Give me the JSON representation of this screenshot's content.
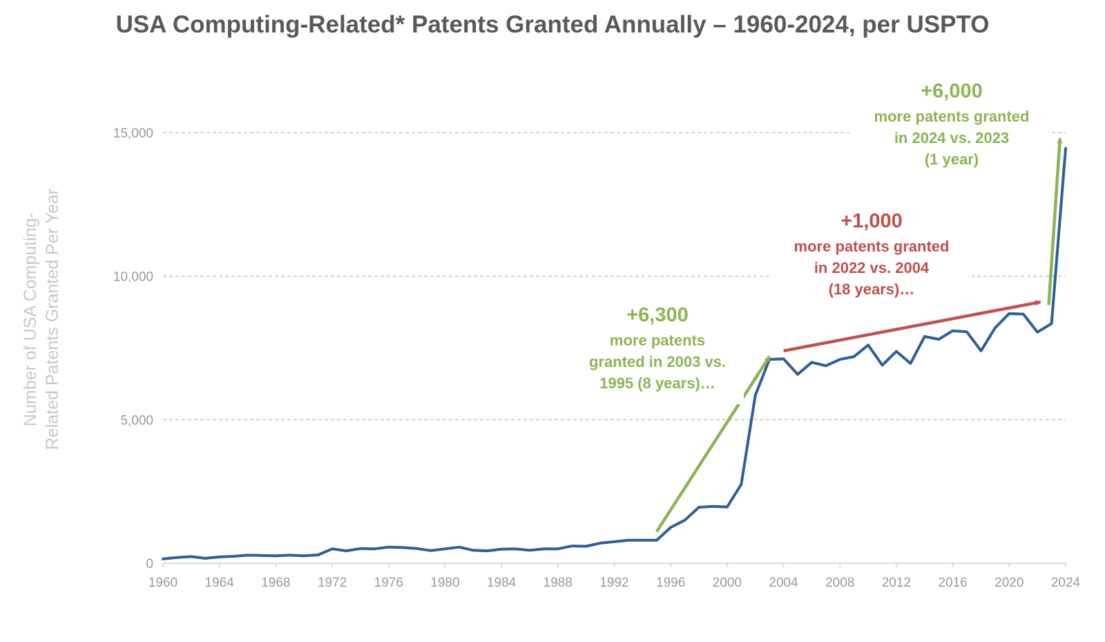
{
  "title": "USA Computing-Related* Patents Granted Annually – 1960-2024, per USPTO",
  "colors": {
    "line": "#2f5f97",
    "green": "#8cb453",
    "red": "#c0504d",
    "grid": "#bdbdbd",
    "axis_text": "#9a9a9a"
  },
  "chart_data": {
    "type": "line",
    "title": "USA Computing-Related* Patents Granted Annually – 1960-2024, per USPTO",
    "xlabel": "",
    "ylabel": "Number of USA Computing-\nRelated Patents Granted Per Year",
    "xlim": [
      1960,
      2024
    ],
    "ylim": [
      0,
      15000
    ],
    "grid": "horizontal dashed",
    "x_ticks": [
      "1960",
      "1964",
      "1968",
      "1972",
      "1976",
      "1980",
      "1984",
      "1988",
      "1992",
      "1996",
      "2000",
      "2004",
      "2008",
      "2012",
      "2016",
      "2020",
      "2024"
    ],
    "y_ticks": [
      "0",
      "5,000",
      "10,000",
      "15,000"
    ],
    "y_tick_values": [
      0,
      5000,
      10000,
      15000
    ],
    "series": [
      {
        "x": [
          1960,
          1961,
          1962,
          1963,
          1964,
          1965,
          1966,
          1967,
          1968,
          1969,
          1970,
          1971,
          1972,
          1973,
          1974,
          1975,
          1976,
          1977,
          1978,
          1979,
          1980,
          1981,
          1982,
          1983,
          1984,
          1985,
          1986,
          1987,
          1988,
          1989,
          1990,
          1991,
          1992,
          1993,
          1994,
          1995,
          1996,
          1997,
          1998,
          1999,
          2000,
          2001,
          2002,
          2003,
          2004,
          2005,
          2006,
          2007,
          2008,
          2009,
          2010,
          2011,
          2012,
          2013,
          2014,
          2015,
          2016,
          2017,
          2018,
          2019,
          2020,
          2021,
          2022,
          2023,
          2024
        ],
        "values": [
          150,
          200,
          230,
          170,
          220,
          240,
          280,
          270,
          260,
          280,
          260,
          290,
          500,
          430,
          510,
          500,
          560,
          550,
          510,
          440,
          500,
          560,
          450,
          430,
          490,
          500,
          450,
          500,
          500,
          600,
          590,
          700,
          750,
          800,
          800,
          800,
          1250,
          1500,
          1950,
          1980,
          1960,
          2750,
          5850,
          7100,
          7120,
          6580,
          7000,
          6880,
          7100,
          7200,
          7600,
          6900,
          7380,
          6960,
          7900,
          7800,
          8100,
          8060,
          7400,
          8200,
          8700,
          8680,
          8050,
          8350,
          14450
        ]
      }
    ],
    "annotations": [
      {
        "id": "a1",
        "value": "+6,300",
        "lines": [
          "more patents",
          "granted in 2003 vs.",
          "1995 (8 years)…"
        ],
        "color": "#8cb453",
        "arrow": {
          "from": [
            1995,
            1100
          ],
          "to": [
            2003,
            7200
          ]
        }
      },
      {
        "id": "a2",
        "value": "+1,000",
        "lines": [
          "more patents granted",
          "in 2022 vs. 2004",
          "(18 years)…"
        ],
        "color": "#c0504d",
        "arrow": {
          "from": [
            2004,
            7400
          ],
          "to": [
            2022.2,
            9100
          ]
        }
      },
      {
        "id": "a3",
        "value": "+6,000",
        "lines": [
          "more patents granted",
          "in 2024 vs. 2023",
          "(1 year)"
        ],
        "color": "#8cb453",
        "arrow": {
          "from": [
            2022.8,
            9000
          ],
          "to": [
            2023.6,
            14800
          ]
        }
      }
    ]
  }
}
